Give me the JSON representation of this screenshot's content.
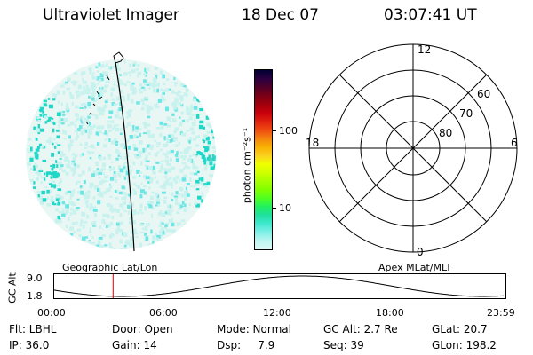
{
  "header": {
    "instrument": "Ultraviolet Imager",
    "date": "18 Dec 07",
    "time": "03:07:41 UT"
  },
  "colorbar": {
    "unit_label": "photon cm⁻²s⁻¹",
    "tick_labels": [
      "100",
      "10"
    ],
    "colors": [
      "#000033",
      "#2a0040",
      "#500028",
      "#7a0016",
      "#a0000c",
      "#c8000c",
      "#e02010",
      "#ef4a10",
      "#f48410",
      "#f8b000",
      "#fbd020",
      "#f0ff00",
      "#d0ff00",
      "#a8ff00",
      "#80ff00",
      "#50ff20",
      "#20f060",
      "#20e0a0",
      "#40e8d0",
      "#80f0e8",
      "#bdf5f0",
      "#dcf8f6"
    ]
  },
  "globe": {
    "label": "Geographic Lat/Lon",
    "colors": {
      "emission_low": "#c8f2ee",
      "emission_mid": "#6ee6e6",
      "emission_high": "#20d8c8",
      "background": "#e8f6f4"
    }
  },
  "polar": {
    "label": "Apex MLat/MLT",
    "mlt_labels": {
      "top": "12",
      "left": "18",
      "right": "6",
      "bottom": "0"
    },
    "lat_labels": [
      "60",
      "70",
      "80"
    ]
  },
  "timeline": {
    "axis_label": "GC Alt",
    "y_ticks": [
      "9.0",
      "1.8"
    ],
    "x_ticks": [
      "00:00",
      "06:00",
      "12:00",
      "18:00",
      "23:59"
    ],
    "marker_time_hours": 3.13,
    "marker_color": "#e00000"
  },
  "info": [
    [
      "Flt: LBHL",
      "Door: Open",
      "Mode: Normal",
      "GC Alt: 2.7 Re",
      "GLat: 20.7"
    ],
    [
      "IP: 36.0",
      "Gain: 14",
      "Dsp:     7.9",
      "Seq: 39",
      "GLon: 198.2"
    ]
  ]
}
